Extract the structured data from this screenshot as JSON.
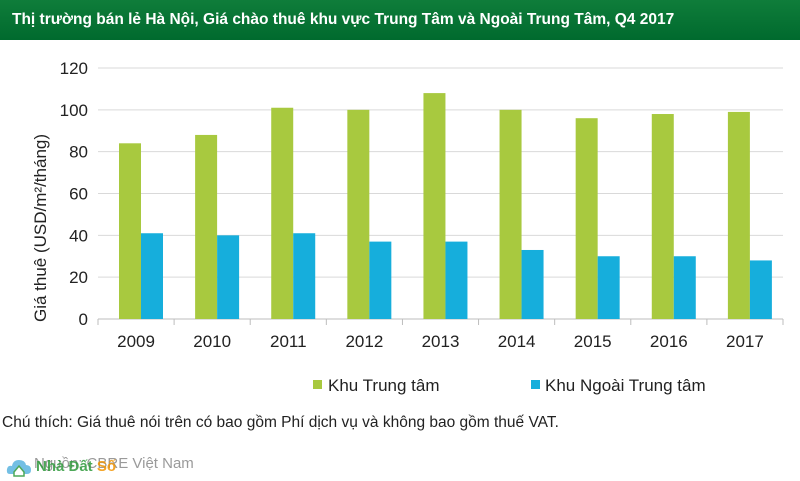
{
  "header": {
    "title": "Thị trường bán lẻ Hà Nội, Giá chào thuê khu vực Trung Tâm và Ngoài Trung Tâm, Q4 2017"
  },
  "chart_data": {
    "type": "bar",
    "title": "Thị trường bán lẻ Hà Nội, Giá chào thuê khu vực Trung Tâm và Ngoài Trung Tâm, Q4 2017",
    "xlabel": "",
    "ylabel": "Giá thuê (USD/m²/tháng)",
    "ylim": [
      0,
      120
    ],
    "yticks": [
      0,
      20,
      40,
      60,
      80,
      100,
      120
    ],
    "grid": true,
    "legend_position": "bottom",
    "categories": [
      "2009",
      "2010",
      "2011",
      "2012",
      "2013",
      "2014",
      "2015",
      "2016",
      "2017"
    ],
    "series": [
      {
        "name": "Khu Trung tâm",
        "color": "#a8c93f",
        "values": [
          84,
          88,
          101,
          100,
          108,
          100,
          96,
          98,
          99
        ]
      },
      {
        "name": "Khu Ngoài Trung tâm",
        "color": "#16aedc",
        "values": [
          41,
          40,
          41,
          37,
          37,
          33,
          30,
          30,
          28
        ]
      }
    ]
  },
  "footer": {
    "note": "Chú thích: Giá thuê nói trên có bao gồm Phí dịch vụ và không bao gồm thuế VAT.",
    "source": "Nguồn: CBRE Việt Nam"
  },
  "watermark": {
    "brand_main": "Nhà Đất ",
    "brand_accent": "Số"
  }
}
